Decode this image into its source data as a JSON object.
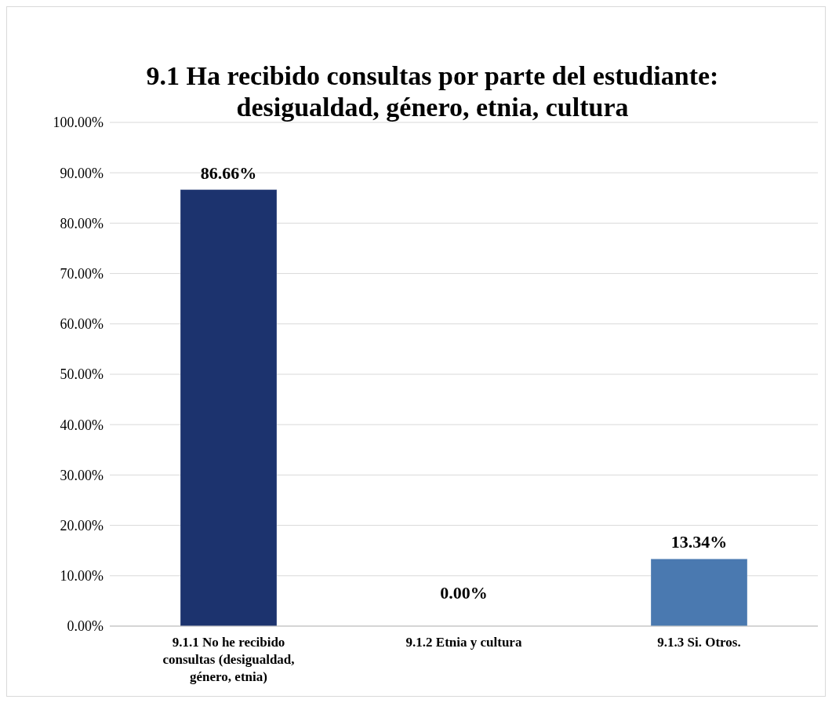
{
  "chart_data": {
    "type": "bar",
    "title": "9.1 Ha recibido consultas por parte del estudiante: desigualdad, género, etnia, cultura",
    "categories": [
      "9.1.1 No he recibido consultas (desigualdad, género, etnia)",
      "9.1.2 Etnia y cultura",
      "9.1.3 Si. Otros."
    ],
    "values": [
      86.66,
      0,
      13.34
    ],
    "colors": [
      "#1c336e",
      "#2a4f8f",
      "#4a79b0"
    ],
    "value_labels": [
      "86.66%",
      "0.00%",
      "13.34%"
    ],
    "ylim": [
      0,
      100
    ],
    "yticks": [
      {
        "value": 0,
        "label": "0.00%"
      },
      {
        "value": 10,
        "label": "10.00%"
      },
      {
        "value": 20,
        "label": "20.00%"
      },
      {
        "value": 30,
        "label": "30.00%"
      },
      {
        "value": 40,
        "label": "40.00%"
      },
      {
        "value": 50,
        "label": "50.00%"
      },
      {
        "value": 60,
        "label": "60.00%"
      },
      {
        "value": 70,
        "label": "70.00%"
      },
      {
        "value": 80,
        "label": "80.00%"
      },
      {
        "value": 90,
        "label": "90.00%"
      },
      {
        "value": 100,
        "label": "100.00%"
      }
    ],
    "grid": "y"
  }
}
